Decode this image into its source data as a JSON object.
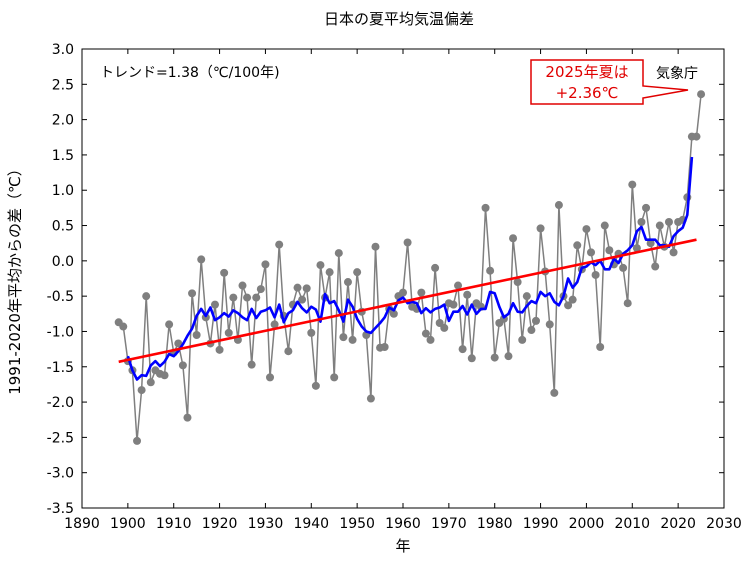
{
  "chart_data": {
    "type": "line",
    "title": "日本の夏平均気温偏差",
    "xlabel": "年",
    "ylabel": "1991-2020年平均からの差（℃）",
    "xlim": [
      1890,
      2030
    ],
    "ylim": [
      -3.5,
      3.0
    ],
    "x_ticks": [
      1890,
      1900,
      1910,
      1920,
      1930,
      1940,
      1950,
      1960,
      1970,
      1980,
      1990,
      2000,
      2010,
      2020,
      2030
    ],
    "y_ticks": [
      -3.5,
      -3.0,
      -2.5,
      -2.0,
      -1.5,
      -1.0,
      -0.5,
      0.0,
      0.5,
      1.0,
      1.5,
      2.0,
      2.5,
      3.0
    ],
    "y_tick_labels": [
      "-3.5",
      "-3.0",
      "-2.5",
      "-2.0",
      "-1.5",
      "-1.0",
      "-0.5",
      "0.0",
      "0.5",
      "1.0",
      "1.5",
      "2.0",
      "2.5",
      "3.0"
    ],
    "grid": false,
    "trend_label": "トレンド=1.38（℃/100年)",
    "source_label": "気象庁",
    "callout": {
      "lines": [
        "2025年夏は",
        "+2.36℃"
      ]
    },
    "series": [
      {
        "name": "",
        "style": "gray line with dots",
        "color": "#7f7f7f",
        "x": [
          1898,
          1899,
          1900,
          1901,
          1902,
          1903,
          1904,
          1905,
          1906,
          1907,
          1908,
          1909,
          1910,
          1911,
          1912,
          1913,
          1914,
          1915,
          1916,
          1917,
          1918,
          1919,
          1920,
          1921,
          1922,
          1923,
          1924,
          1925,
          1926,
          1927,
          1928,
          1929,
          1930,
          1931,
          1932,
          1933,
          1934,
          1935,
          1936,
          1937,
          1938,
          1939,
          1940,
          1941,
          1942,
          1943,
          1944,
          1945,
          1946,
          1947,
          1948,
          1949,
          1950,
          1951,
          1952,
          1953,
          1954,
          1955,
          1956,
          1957,
          1958,
          1959,
          1960,
          1961,
          1962,
          1963,
          1964,
          1965,
          1966,
          1967,
          1968,
          1969,
          1970,
          1971,
          1972,
          1973,
          1974,
          1975,
          1976,
          1977,
          1978,
          1979,
          1980,
          1981,
          1982,
          1983,
          1984,
          1985,
          1986,
          1987,
          1988,
          1989,
          1990,
          1991,
          1992,
          1993,
          1994,
          1995,
          1996,
          1997,
          1998,
          1999,
          2000,
          2001,
          2002,
          2003,
          2004,
          2005,
          2006,
          2007,
          2008,
          2009,
          2010,
          2011,
          2012,
          2013,
          2014,
          2015,
          2016,
          2017,
          2018,
          2019,
          2020,
          2021,
          2022,
          2023,
          2024,
          2025
        ],
        "values": [
          -0.87,
          -0.93,
          -1.42,
          -1.55,
          -2.55,
          -1.83,
          -0.5,
          -1.72,
          -1.55,
          -1.6,
          -1.62,
          -0.9,
          -1.3,
          -1.17,
          -1.48,
          -2.22,
          -0.46,
          -1.05,
          0.02,
          -0.8,
          -1.17,
          -0.62,
          -1.26,
          -0.17,
          -1.02,
          -0.52,
          -1.12,
          -0.35,
          -0.52,
          -1.47,
          -0.52,
          -0.4,
          -0.05,
          -1.65,
          -0.9,
          0.23,
          -0.78,
          -1.28,
          -0.62,
          -0.38,
          -0.55,
          -0.39,
          -1.02,
          -1.77,
          -0.06,
          -0.52,
          -0.16,
          -1.65,
          0.11,
          -1.08,
          -0.3,
          -1.12,
          -0.16,
          -0.72,
          -1.05,
          -1.95,
          0.2,
          -1.23,
          -1.22,
          -0.68,
          -0.75,
          -0.5,
          -0.45,
          0.26,
          -0.65,
          -0.68,
          -0.45,
          -1.03,
          -1.12,
          -0.1,
          -0.88,
          -0.95,
          -0.6,
          -0.62,
          -0.35,
          -1.25,
          -0.48,
          -1.38,
          -0.6,
          -0.65,
          0.75,
          -0.14,
          -1.37,
          -0.88,
          -0.82,
          -1.35,
          0.32,
          -0.3,
          -1.12,
          -0.5,
          -0.98,
          -0.85,
          0.46,
          -0.15,
          -0.9,
          -1.87,
          0.79,
          -0.5,
          -0.63,
          -0.55,
          0.22,
          -0.12,
          0.45,
          0.12,
          -0.2,
          -1.22,
          0.5,
          0.15,
          -0.05,
          0.1,
          -0.1,
          -0.6,
          1.08,
          0.18,
          0.55,
          0.75,
          0.25,
          -0.08,
          0.5,
          0.2,
          0.55,
          0.12,
          0.55,
          0.58,
          0.9,
          1.76,
          1.76,
          2.36
        ]
      },
      {
        "name": "",
        "style": "blue 5-year running mean",
        "color": "#0000ff",
        "x": [
          1900,
          1901,
          1902,
          1903,
          1904,
          1905,
          1906,
          1907,
          1908,
          1909,
          1910,
          1911,
          1912,
          1913,
          1914,
          1915,
          1916,
          1917,
          1918,
          1919,
          1920,
          1921,
          1922,
          1923,
          1924,
          1925,
          1926,
          1927,
          1928,
          1929,
          1930,
          1931,
          1932,
          1933,
          1934,
          1935,
          1936,
          1937,
          1938,
          1939,
          1940,
          1941,
          1942,
          1943,
          1944,
          1945,
          1946,
          1947,
          1948,
          1949,
          1950,
          1951,
          1952,
          1953,
          1954,
          1955,
          1956,
          1957,
          1958,
          1959,
          1960,
          1961,
          1962,
          1963,
          1964,
          1965,
          1966,
          1967,
          1968,
          1969,
          1970,
          1971,
          1972,
          1973,
          1974,
          1975,
          1976,
          1977,
          1978,
          1979,
          1980,
          1981,
          1982,
          1983,
          1984,
          1985,
          1986,
          1987,
          1988,
          1989,
          1990,
          1991,
          1992,
          1993,
          1994,
          1995,
          1996,
          1997,
          1998,
          1999,
          2000,
          2001,
          2002,
          2003,
          2004,
          2005,
          2006,
          2007,
          2008,
          2009,
          2010,
          2011,
          2012,
          2013,
          2014,
          2015,
          2016,
          2017,
          2018,
          2019,
          2020,
          2021,
          2022,
          2023
        ],
        "values": [
          -1.35,
          -1.55,
          -1.68,
          -1.62,
          -1.63,
          -1.48,
          -1.42,
          -1.49,
          -1.43,
          -1.32,
          -1.35,
          -1.28,
          -1.18,
          -1.06,
          -0.96,
          -0.78,
          -0.68,
          -0.78,
          -0.66,
          -0.84,
          -0.8,
          -0.74,
          -0.79,
          -0.7,
          -0.74,
          -0.8,
          -0.84,
          -0.68,
          -0.81,
          -0.72,
          -0.7,
          -0.66,
          -0.8,
          -0.62,
          -0.87,
          -0.74,
          -0.7,
          -0.58,
          -0.67,
          -0.73,
          -0.65,
          -0.69,
          -0.86,
          -0.47,
          -0.6,
          -0.57,
          -0.7,
          -0.86,
          -0.55,
          -0.65,
          -0.82,
          -0.93,
          -1.0,
          -1.02,
          -0.95,
          -0.88,
          -0.8,
          -0.66,
          -0.7,
          -0.56,
          -0.52,
          -0.6,
          -0.58,
          -0.6,
          -0.74,
          -0.67,
          -0.73,
          -0.68,
          -0.66,
          -0.62,
          -0.85,
          -0.72,
          -0.72,
          -0.64,
          -0.76,
          -0.62,
          -0.75,
          -0.68,
          -0.68,
          -0.44,
          -0.46,
          -0.65,
          -0.8,
          -0.75,
          -0.6,
          -0.72,
          -0.73,
          -0.64,
          -0.57,
          -0.6,
          -0.44,
          -0.5,
          -0.46,
          -0.58,
          -0.63,
          -0.5,
          -0.25,
          -0.38,
          -0.3,
          -0.1,
          -0.08,
          -0.02,
          -0.06,
          0.0,
          -0.12,
          -0.12,
          0.03,
          -0.03,
          0.1,
          0.15,
          0.22,
          0.42,
          0.48,
          0.3,
          0.3,
          0.3,
          0.22,
          0.22,
          0.2,
          0.35,
          0.42,
          0.47,
          0.65,
          1.47
        ]
      },
      {
        "name": "",
        "style": "red linear trend",
        "color": "#ff0000",
        "x": [
          1898,
          2024
        ],
        "values": [
          -1.43,
          0.3
        ]
      }
    ]
  }
}
